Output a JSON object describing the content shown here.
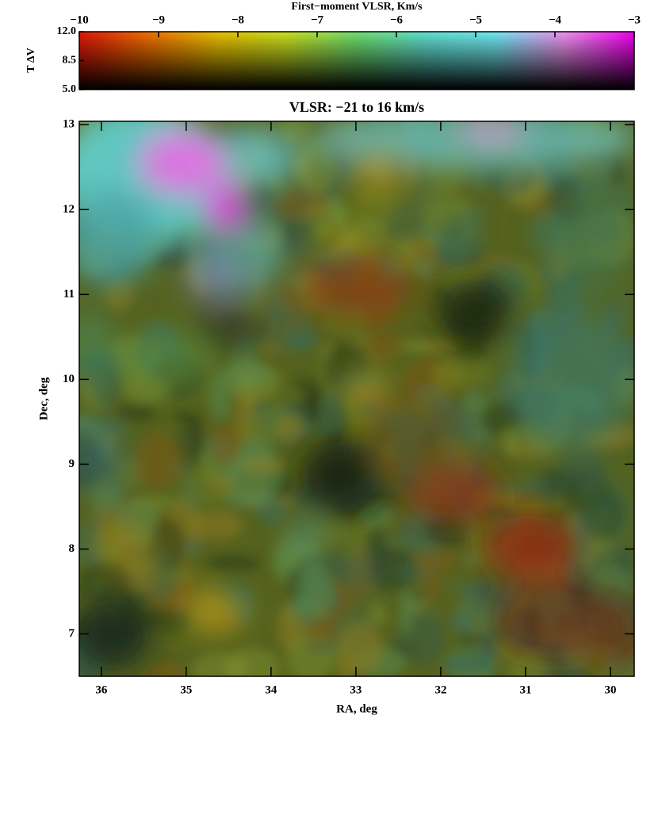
{
  "chart_data": [
    {
      "type": "colorbar",
      "title": "First−moment VLSR, Km/s",
      "ylabel": "T ΔV",
      "xlim": [
        -10,
        -3
      ],
      "xticks": [
        {
          "value": -10,
          "label": "−10"
        },
        {
          "value": -9,
          "label": "−9"
        },
        {
          "value": -8,
          "label": "−8"
        },
        {
          "value": -7,
          "label": "−7"
        },
        {
          "value": -6,
          "label": "−6"
        },
        {
          "value": -5,
          "label": "−5"
        },
        {
          "value": -4,
          "label": "−4"
        },
        {
          "value": -3,
          "label": "−3"
        }
      ],
      "ylim": [
        5,
        12
      ],
      "yticks": [
        {
          "value": 5,
          "label": "5.0"
        },
        {
          "value": 8.5,
          "label": "8.5"
        },
        {
          "value": 12,
          "label": "12.0"
        }
      ],
      "colors": [
        "#e01808",
        "#f07000",
        "#e8c000",
        "#c8e020",
        "#70e070",
        "#60e0d0",
        "#70e8f0",
        "#f090f0",
        "#f000f0"
      ]
    },
    {
      "type": "image",
      "title": "VLSR: −21 to 16 km/s",
      "xlabel": "RA, deg",
      "ylabel": "Dec, deg",
      "xlim": [
        36.26,
        29.72
      ],
      "xticks": [
        36,
        35,
        34,
        33,
        32,
        31,
        30
      ],
      "ylim": [
        6.5,
        13.04
      ],
      "yticks": [
        7,
        8,
        9,
        10,
        11,
        12,
        13
      ]
    }
  ]
}
